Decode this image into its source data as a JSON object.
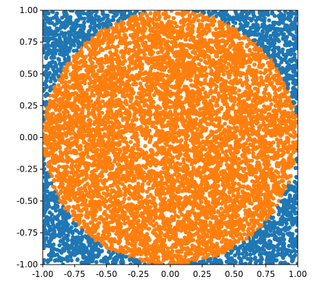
{
  "chart_data": {
    "type": "scatter",
    "title": "",
    "xlabel": "",
    "ylabel": "",
    "xlim": [
      -1.0,
      1.0
    ],
    "ylim": [
      -1.0,
      1.0
    ],
    "aspect": "equal",
    "grid": false,
    "legend": "none",
    "x_ticks": [
      "-1.00",
      "-0.75",
      "-0.50",
      "-0.25",
      "0.00",
      "0.25",
      "0.50",
      "0.75",
      "1.00"
    ],
    "y_ticks": [
      "-1.00",
      "-0.75",
      "-0.50",
      "-0.25",
      "0.00",
      "0.25",
      "0.50",
      "0.75",
      "1.00"
    ],
    "x_tick_values": [
      -1.0,
      -0.75,
      -0.5,
      -0.25,
      0.0,
      0.25,
      0.5,
      0.75,
      1.0
    ],
    "y_tick_values": [
      -1.0,
      -0.75,
      -0.5,
      -0.25,
      0.0,
      0.25,
      0.5,
      0.75,
      1.0
    ],
    "description": "Uniform random points in the square [-1,1]x[-1,1]; points with x^2+y^2<=1 are orange, others blue",
    "series": [
      {
        "color": "#1f77b4",
        "region": "outside unit circle (x^2+y^2 > 1)"
      },
      {
        "color": "#ff7f0e",
        "region": "inside unit circle (x^2+y^2 <= 1)"
      }
    ]
  }
}
